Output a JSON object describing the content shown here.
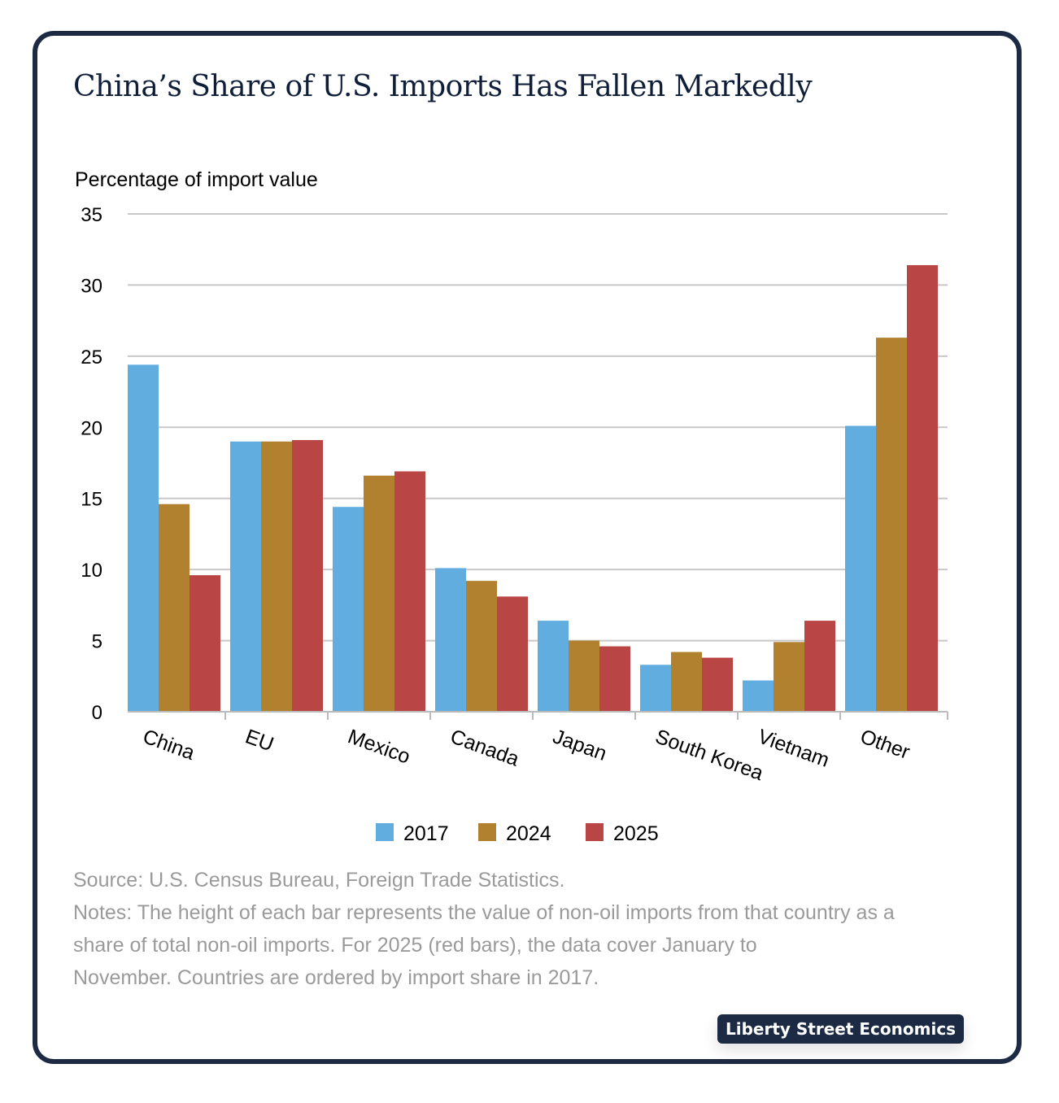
{
  "title": "China’s Share of U.S. Imports Has Fallen Markedly",
  "chart_data": {
    "type": "bar",
    "ylabel": "Percentage of import value",
    "ylim": [
      0,
      35
    ],
    "yticks": [
      0,
      5,
      10,
      15,
      20,
      25,
      30,
      35
    ],
    "grid": true,
    "legend_placement": "bottom",
    "categories": [
      "China",
      "EU",
      "Mexico",
      "Canada",
      "Japan",
      "South Korea",
      "Vietnam",
      "Other"
    ],
    "series": [
      {
        "name": "2017",
        "color": "#62ade0",
        "values": [
          24.4,
          19.0,
          14.4,
          10.1,
          6.4,
          3.3,
          2.2,
          20.1
        ]
      },
      {
        "name": "2024",
        "color": "#b1812f",
        "values": [
          14.6,
          19.0,
          16.6,
          9.2,
          5.0,
          4.2,
          4.9,
          26.3
        ]
      },
      {
        "name": "2025",
        "color": "#b94545",
        "values": [
          9.6,
          19.1,
          16.9,
          8.1,
          4.6,
          3.8,
          6.4,
          31.4
        ]
      }
    ]
  },
  "notes": {
    "source": "Source: U.S. Census Bureau, Foreign Trade Statistics.",
    "lines": [
      "Notes: The height of each bar represents the value of non-oil imports from that country as a",
      "share of total non-oil imports. For 2025 (red bars), the data cover January to",
      "November. Countries are ordered by import share in 2017."
    ]
  },
  "brand": "Liberty Street Economics"
}
